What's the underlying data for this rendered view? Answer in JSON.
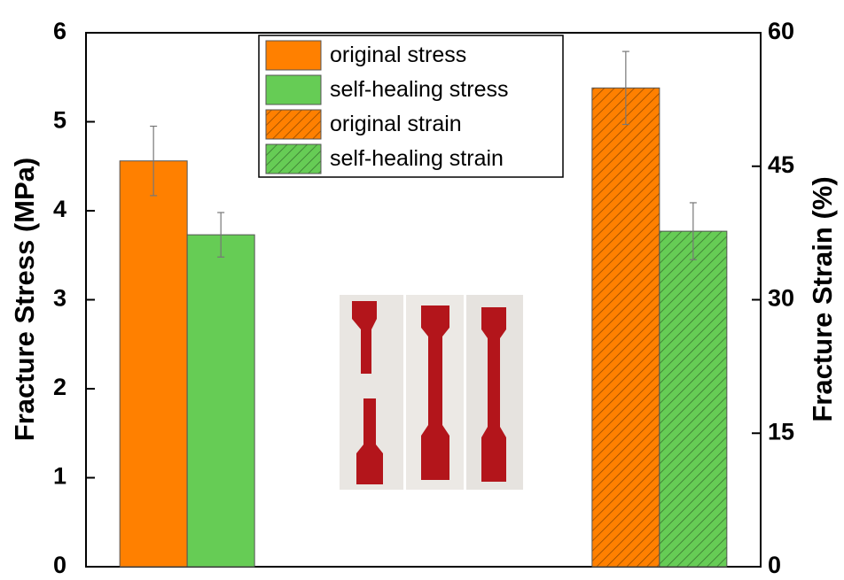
{
  "chart_data": {
    "type": "bar",
    "ylabel": "Fracture Stress (MPa)",
    "y2label": "Fracture Strain (%)",
    "categories": [
      null,
      null
    ],
    "series": [
      {
        "name": "original stress",
        "color": "#ff8000",
        "hatch": false,
        "axis": "y",
        "values": [
          4.56,
          null
        ],
        "errors": [
          0.39,
          null
        ]
      },
      {
        "name": "self-healing stress",
        "color": "#66cc55",
        "hatch": false,
        "axis": "y",
        "values": [
          3.73,
          null
        ],
        "errors": [
          0.25,
          null
        ]
      },
      {
        "name": "original strain",
        "color": "#ff8000",
        "hatch": true,
        "axis": "y2",
        "values": [
          null,
          53.8
        ],
        "errors": [
          null,
          4.1
        ]
      },
      {
        "name": "self-healing strain",
        "color": "#66cc55",
        "hatch": true,
        "axis": "y2",
        "values": [
          null,
          37.7
        ],
        "errors": [
          null,
          3.2
        ]
      }
    ],
    "ylim": [
      0,
      6
    ],
    "yticks": [
      0,
      1,
      2,
      3,
      4,
      5,
      6
    ],
    "y2lim": [
      0,
      60
    ],
    "y2ticks": [
      0,
      15,
      30,
      45,
      60
    ],
    "legend": "upper center"
  }
}
